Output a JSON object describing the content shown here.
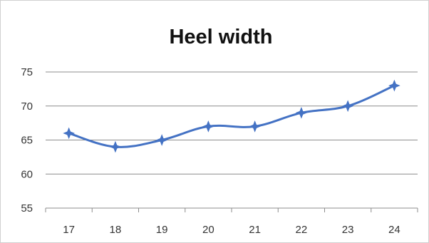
{
  "chart_data": {
    "type": "line",
    "title": "Heel width",
    "xlabel": "",
    "ylabel": "",
    "categories": [
      "17",
      "18",
      "19",
      "20",
      "21",
      "22",
      "23",
      "24"
    ],
    "series": [
      {
        "values": [
          66,
          64,
          65,
          67,
          67,
          69,
          70,
          73
        ]
      }
    ],
    "ylim": [
      55,
      75
    ],
    "yticks": [
      "55",
      "60",
      "65",
      "70",
      "75"
    ],
    "grid": "horizontal",
    "legend": "none",
    "line_color": "#4472C4",
    "marker": "star",
    "smooth": true
  }
}
